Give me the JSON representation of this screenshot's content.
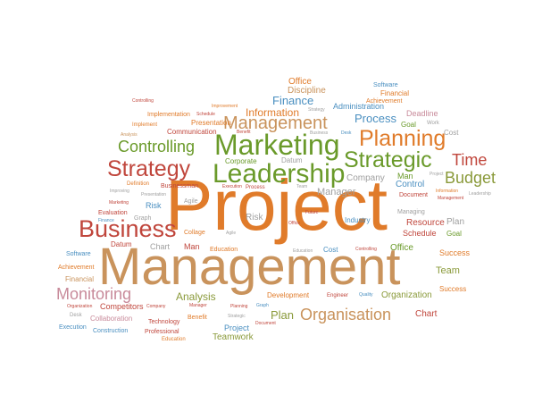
{
  "colors": {
    "orange": "#e07b2a",
    "tan": "#c9935c",
    "green": "#6a9a2a",
    "blue": "#4a8fc0",
    "red": "#c0463c",
    "pink": "#c88a9a",
    "grey": "#a0a0a0",
    "olive": "#8a9a3a",
    "purple": "#8a6aa8",
    "darkgreen": "#3f8a3f"
  },
  "words": [
    {
      "text": "Project",
      "color": "orange"
    },
    {
      "text": "Management",
      "color": "tan"
    },
    {
      "text": "Business",
      "color": "red"
    },
    {
      "text": "Marketing",
      "color": "green"
    },
    {
      "text": "Leadership",
      "color": "green"
    },
    {
      "text": "Strategic",
      "color": "green"
    },
    {
      "text": "Strategy",
      "color": "red"
    },
    {
      "text": "Planning",
      "color": "orange"
    },
    {
      "text": "Management",
      "color": "tan"
    },
    {
      "text": "Controlling",
      "color": "green"
    },
    {
      "text": "Time",
      "color": "red"
    },
    {
      "text": "Budget",
      "color": "olive"
    },
    {
      "text": "Monitoring",
      "color": "pink"
    },
    {
      "text": "Organisation",
      "color": "tan"
    },
    {
      "text": "Process",
      "color": "blue"
    },
    {
      "text": "Finance",
      "color": "blue"
    },
    {
      "text": "Information",
      "color": "orange"
    },
    {
      "text": "Office",
      "color": "orange"
    },
    {
      "text": "Discipline",
      "color": "tan"
    },
    {
      "text": "Administration",
      "color": "blue"
    },
    {
      "text": "Deadline",
      "color": "pink"
    },
    {
      "text": "Software",
      "color": "blue"
    },
    {
      "text": "Financial",
      "color": "orange"
    },
    {
      "text": "Achievement",
      "color": "orange"
    },
    {
      "text": "Goal",
      "color": "green"
    },
    {
      "text": "Work",
      "color": "grey"
    },
    {
      "text": "Cost",
      "color": "grey"
    },
    {
      "text": "Presentation",
      "color": "orange"
    },
    {
      "text": "Communication",
      "color": "red"
    },
    {
      "text": "Implementation",
      "color": "orange"
    },
    {
      "text": "Improvement",
      "color": "orange"
    },
    {
      "text": "Controlling",
      "color": "red"
    },
    {
      "text": "Schedule",
      "color": "red"
    },
    {
      "text": "Strategy",
      "color": "grey"
    },
    {
      "text": "Implement",
      "color": "orange"
    },
    {
      "text": "Analysis",
      "color": "tan"
    },
    {
      "text": "Benefit",
      "color": "red"
    },
    {
      "text": "Business",
      "color": "grey"
    },
    {
      "text": "Desk",
      "color": "blue"
    },
    {
      "text": "Corporate",
      "color": "green"
    },
    {
      "text": "Datum",
      "color": "grey"
    },
    {
      "text": "Man",
      "color": "green"
    },
    {
      "text": "Control",
      "color": "blue"
    },
    {
      "text": "Company",
      "color": "grey"
    },
    {
      "text": "Project",
      "color": "grey"
    },
    {
      "text": "Manager",
      "color": "grey"
    },
    {
      "text": "Definition",
      "color": "orange"
    },
    {
      "text": "Businessman",
      "color": "red"
    },
    {
      "text": "Execution",
      "color": "red"
    },
    {
      "text": "Process",
      "color": "red"
    },
    {
      "text": "Team",
      "color": "grey"
    },
    {
      "text": "Document",
      "color": "red"
    },
    {
      "text": "Information",
      "color": "orange"
    },
    {
      "text": "Management",
      "color": "red"
    },
    {
      "text": "Leadership",
      "color": "grey"
    },
    {
      "text": "Improving",
      "color": "grey"
    },
    {
      "text": "Presentation",
      "color": "grey"
    },
    {
      "text": "Marketing",
      "color": "red"
    },
    {
      "text": "Agile",
      "color": "grey"
    },
    {
      "text": "Risk",
      "color": "blue"
    },
    {
      "text": "Evaluation",
      "color": "red"
    },
    {
      "text": "Graph",
      "color": "grey"
    },
    {
      "text": "Finance",
      "color": "blue"
    },
    {
      "text": "Future",
      "color": "red"
    },
    {
      "text": "Risk",
      "color": "grey"
    },
    {
      "text": "Office",
      "color": "red"
    },
    {
      "text": "Industry",
      "color": "blue"
    },
    {
      "text": "Managing",
      "color": "grey"
    },
    {
      "text": "Resource",
      "color": "red"
    },
    {
      "text": "Plan",
      "color": "grey"
    },
    {
      "text": "Schedule",
      "color": "red"
    },
    {
      "text": "Goal",
      "color": "green"
    },
    {
      "text": "Collage",
      "color": "orange"
    },
    {
      "text": "Agile",
      "color": "grey"
    },
    {
      "text": "Datum",
      "color": "red"
    },
    {
      "text": "Chart",
      "color": "grey"
    },
    {
      "text": "Man",
      "color": "red"
    },
    {
      "text": "Education",
      "color": "orange"
    },
    {
      "text": "Education",
      "color": "grey"
    },
    {
      "text": "Cost",
      "color": "blue"
    },
    {
      "text": "Controlling",
      "color": "red"
    },
    {
      "text": "Office",
      "color": "green"
    },
    {
      "text": "Success",
      "color": "orange"
    },
    {
      "text": "Software",
      "color": "blue"
    },
    {
      "text": "Achievement",
      "color": "orange"
    },
    {
      "text": "Financial",
      "color": "tan"
    },
    {
      "text": "Team",
      "color": "olive"
    },
    {
      "text": "Success",
      "color": "orange"
    },
    {
      "text": "Analysis",
      "color": "olive"
    },
    {
      "text": "Development",
      "color": "orange"
    },
    {
      "text": "Engineer",
      "color": "red"
    },
    {
      "text": "Quality",
      "color": "blue"
    },
    {
      "text": "Organization",
      "color": "olive"
    },
    {
      "text": "Competitors",
      "color": "red"
    },
    {
      "text": "Organization",
      "color": "red"
    },
    {
      "text": "Company",
      "color": "red"
    },
    {
      "text": "Manager",
      "color": "red"
    },
    {
      "text": "Planning",
      "color": "red"
    },
    {
      "text": "Graph",
      "color": "blue"
    },
    {
      "text": "Desk",
      "color": "grey"
    },
    {
      "text": "Collaboration",
      "color": "pink"
    },
    {
      "text": "Benefit",
      "color": "orange"
    },
    {
      "text": "Strategic",
      "color": "grey"
    },
    {
      "text": "Plan",
      "color": "olive"
    },
    {
      "text": "Chart",
      "color": "red"
    },
    {
      "text": "Execution",
      "color": "blue"
    },
    {
      "text": "Construction",
      "color": "blue"
    },
    {
      "text": "Technology",
      "color": "red"
    },
    {
      "text": "Professional",
      "color": "red"
    },
    {
      "text": "Education",
      "color": "orange"
    },
    {
      "text": "Project",
      "color": "blue"
    },
    {
      "text": "Document",
      "color": "red"
    },
    {
      "text": "Teamwork",
      "color": "olive"
    }
  ]
}
